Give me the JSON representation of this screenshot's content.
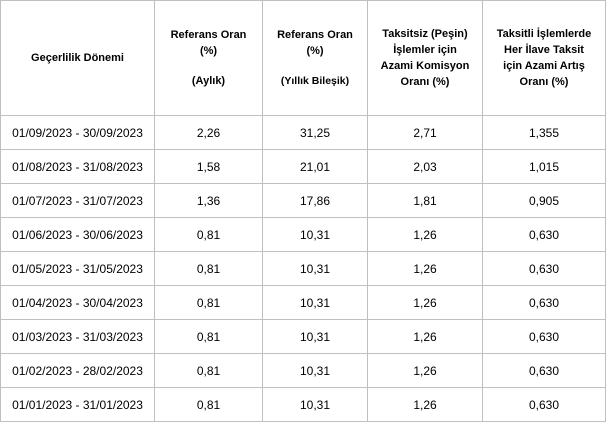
{
  "headers": {
    "period": "Geçerlilik Dönemi",
    "monthly": {
      "line1": "Referans Oran",
      "line2": "(%)",
      "line3": "(Aylık)"
    },
    "yearly": {
      "line1": "Referans Oran",
      "line2": "(%)",
      "line3": "(Yıllık Bileşik)"
    },
    "single": {
      "line1": "Taksitsiz (Peşin)",
      "line2": "İşlemler için",
      "line3": "Azami Komisyon",
      "line4": "Oranı (%)"
    },
    "installment": {
      "line1": "Taksitli İşlemlerde",
      "line2": "Her İlave Taksit",
      "line3": "için Azami Artış",
      "line4": "Oranı (%)"
    }
  },
  "rows": [
    {
      "period": "01/09/2023 - 30/09/2023",
      "monthly": "2,26",
      "yearly": "31,25",
      "single": "2,71",
      "installment": "1,355"
    },
    {
      "period": "01/08/2023 - 31/08/2023",
      "monthly": "1,58",
      "yearly": "21,01",
      "single": "2,03",
      "installment": "1,015"
    },
    {
      "period": "01/07/2023 - 31/07/2023",
      "monthly": "1,36",
      "yearly": "17,86",
      "single": "1,81",
      "installment": "0,905"
    },
    {
      "period": "01/06/2023 - 30/06/2023",
      "monthly": "0,81",
      "yearly": "10,31",
      "single": "1,26",
      "installment": "0,630"
    },
    {
      "period": "01/05/2023 - 31/05/2023",
      "monthly": "0,81",
      "yearly": "10,31",
      "single": "1,26",
      "installment": "0,630"
    },
    {
      "period": "01/04/2023 - 30/04/2023",
      "monthly": "0,81",
      "yearly": "10,31",
      "single": "1,26",
      "installment": "0,630"
    },
    {
      "period": "01/03/2023 - 31/03/2023",
      "monthly": "0,81",
      "yearly": "10,31",
      "single": "1,26",
      "installment": "0,630"
    },
    {
      "period": "01/02/2023 - 28/02/2023",
      "monthly": "0,81",
      "yearly": "10,31",
      "single": "1,26",
      "installment": "0,630"
    },
    {
      "period": "01/01/2023 - 31/01/2023",
      "monthly": "0,81",
      "yearly": "10,31",
      "single": "1,26",
      "installment": "0,630"
    }
  ]
}
